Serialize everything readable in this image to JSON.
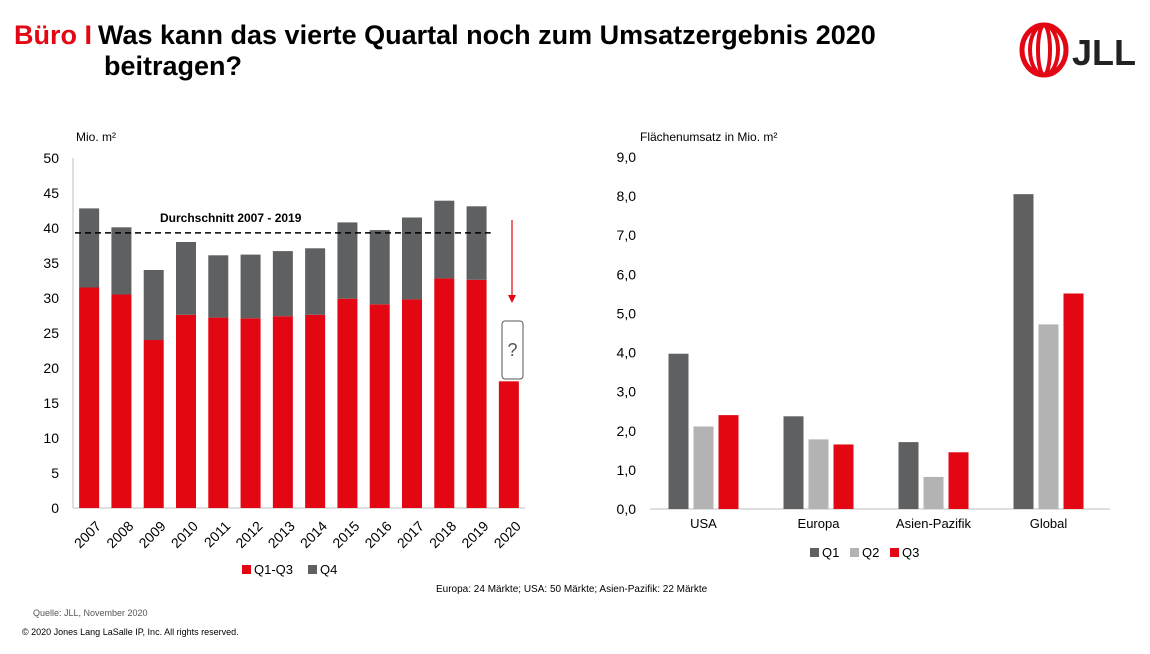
{
  "title": {
    "prefix": "Büro I",
    "line1": "Was kann das vierte Quartal noch zum  Umsatzergebnis 2020",
    "line2": "beitragen?"
  },
  "logo": {
    "text": "JLL",
    "color": "#e30613"
  },
  "colors": {
    "q1q3": "#e30613",
    "q4": "#5f6062",
    "q1": "#5f6062",
    "q2": "#b3b3b3",
    "q3": "#e30613",
    "avg": "#000000",
    "arrow": "#e30613"
  },
  "left_chart": {
    "unit_label": "Mio. m²",
    "average_label": "Durchschnitt 2007 - 2019",
    "question_mark": "?"
  },
  "right_chart": {
    "unit_label": "Flächenumsatz in Mio. m²"
  },
  "chart_data": [
    {
      "type": "bar",
      "stacked": true,
      "ylabel": "Mio. m²",
      "ylim": [
        0,
        50
      ],
      "yticks": [
        0,
        5,
        10,
        15,
        20,
        25,
        30,
        35,
        40,
        45,
        50
      ],
      "categories": [
        "2007",
        "2008",
        "2009",
        "2010",
        "2011",
        "2012",
        "2013",
        "2014",
        "2015",
        "2016",
        "2017",
        "2018",
        "2019",
        "2020"
      ],
      "series": [
        {
          "name": "Q1-Q3",
          "values": [
            31.5,
            30.5,
            24.0,
            27.6,
            27.2,
            27.1,
            27.4,
            27.6,
            29.9,
            29.1,
            29.8,
            32.8,
            32.6,
            18.1
          ]
        },
        {
          "name": "Q4",
          "values": [
            11.3,
            9.6,
            10.0,
            10.4,
            8.9,
            9.1,
            9.3,
            9.5,
            10.9,
            10.6,
            11.7,
            11.1,
            10.5,
            null
          ]
        }
      ],
      "average": {
        "label": "Durchschnitt 2007 - 2019",
        "value": 39.3
      },
      "legend": [
        "Q1-Q3",
        "Q4"
      ],
      "legend_position": "bottom"
    },
    {
      "type": "bar",
      "ylabel": "Flächenumsatz in Mio. m²",
      "ylim": [
        0,
        9
      ],
      "yticks": [
        "0,0",
        "1,0",
        "2,0",
        "3,0",
        "4,0",
        "5,0",
        "6,0",
        "7,0",
        "8,0",
        "9,0"
      ],
      "categories": [
        "USA",
        "Europa",
        "Asien-Pazifik",
        "Global"
      ],
      "series": [
        {
          "name": "Q1",
          "values": [
            3.97,
            2.37,
            1.71,
            8.05
          ]
        },
        {
          "name": "Q2",
          "values": [
            2.11,
            1.78,
            0.82,
            4.72
          ]
        },
        {
          "name": "Q3",
          "values": [
            2.4,
            1.65,
            1.45,
            5.51
          ]
        }
      ],
      "legend": [
        "Q1",
        "Q2",
        "Q3"
      ],
      "legend_position": "bottom",
      "footnote": "Europa: 24 Märkte; USA: 50 Märkte; Asien-Pazifik: 22 Märkte"
    }
  ],
  "source": "Quelle: JLL, November 2020",
  "copyright": "© 2020 Jones Lang LaSalle IP, Inc. All rights reserved."
}
